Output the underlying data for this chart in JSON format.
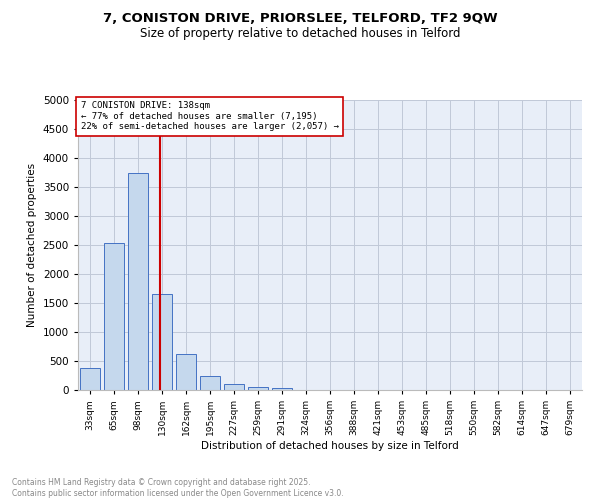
{
  "title_line1": "7, CONISTON DRIVE, PRIORSLEE, TELFORD, TF2 9QW",
  "title_line2": "Size of property relative to detached houses in Telford",
  "xlabel": "Distribution of detached houses by size in Telford",
  "ylabel": "Number of detached properties",
  "categories": [
    "33sqm",
    "65sqm",
    "98sqm",
    "130sqm",
    "162sqm",
    "195sqm",
    "227sqm",
    "259sqm",
    "291sqm",
    "324sqm",
    "356sqm",
    "388sqm",
    "421sqm",
    "453sqm",
    "485sqm",
    "518sqm",
    "550sqm",
    "582sqm",
    "614sqm",
    "647sqm",
    "679sqm"
  ],
  "values": [
    380,
    2530,
    3750,
    1650,
    620,
    240,
    110,
    50,
    30,
    0,
    0,
    0,
    0,
    0,
    0,
    0,
    0,
    0,
    0,
    0,
    0
  ],
  "bar_color": "#c5d8ed",
  "bar_edge_color": "#4472c4",
  "vline_color": "#cc0000",
  "annotation_text": "7 CONISTON DRIVE: 138sqm\n← 77% of detached houses are smaller (7,195)\n22% of semi-detached houses are larger (2,057) →",
  "annotation_box_color": "#ffffff",
  "annotation_box_edge": "#cc0000",
  "ylim": [
    0,
    5000
  ],
  "yticks": [
    0,
    500,
    1000,
    1500,
    2000,
    2500,
    3000,
    3500,
    4000,
    4500,
    5000
  ],
  "grid_color": "#c0c8d8",
  "background_color": "#e8eef8",
  "footer_text": "Contains HM Land Registry data © Crown copyright and database right 2025.\nContains public sector information licensed under the Open Government Licence v3.0.",
  "footer_color": "#888888"
}
